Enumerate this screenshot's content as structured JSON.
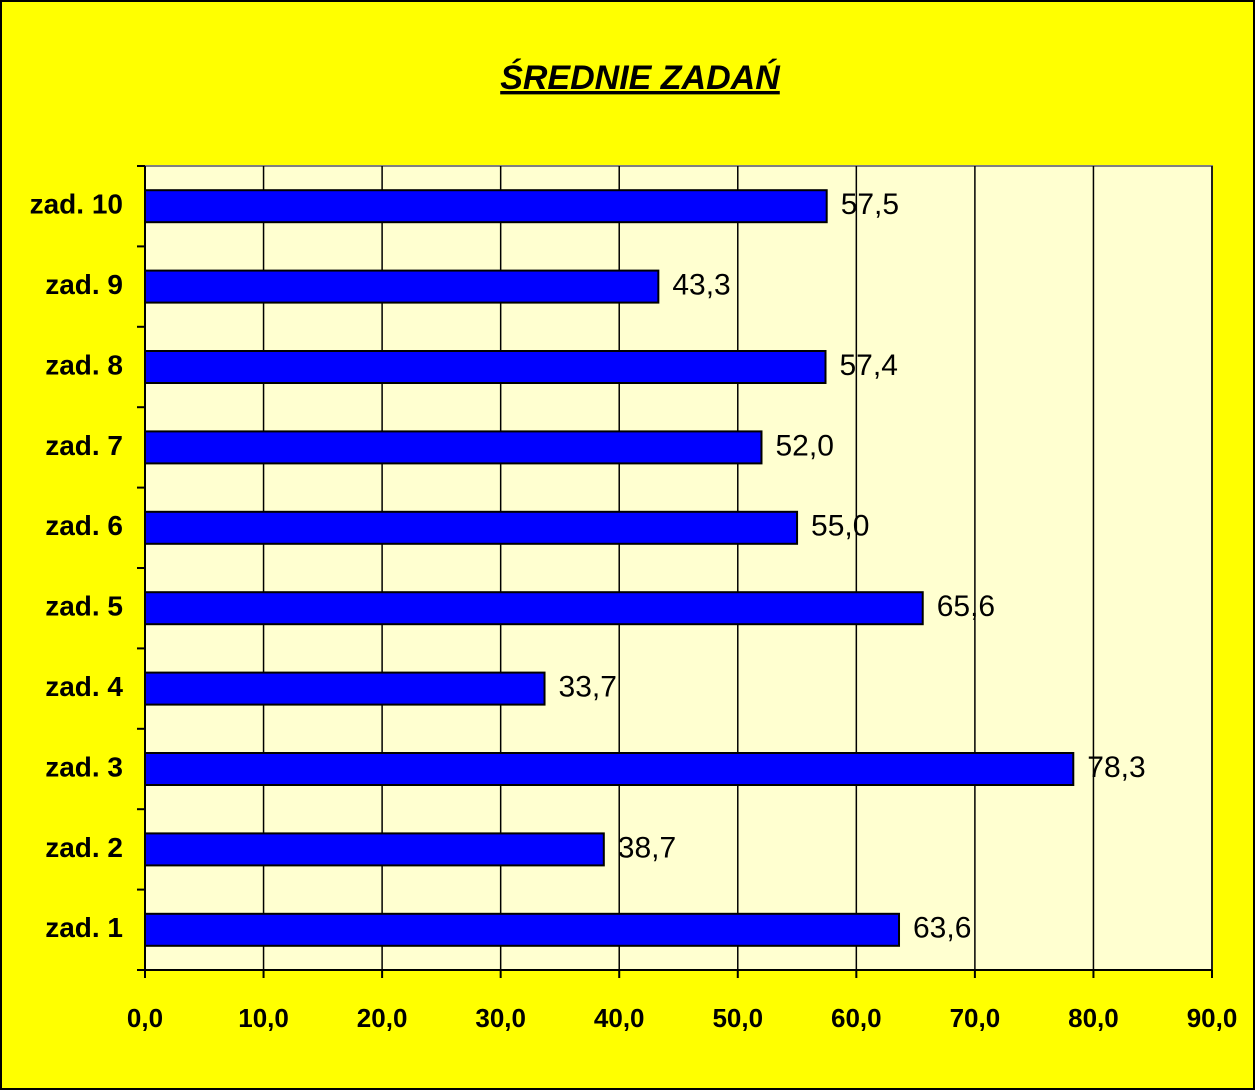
{
  "chart_data": {
    "type": "bar",
    "orientation": "horizontal",
    "title": "ŚREDNIE ZADAŃ",
    "categories": [
      "zad. 1",
      "zad. 2",
      "zad. 3",
      "zad. 4",
      "zad. 5",
      "zad. 6",
      "zad. 7",
      "zad. 8",
      "zad. 9",
      "zad. 10"
    ],
    "values": [
      63.6,
      38.7,
      78.3,
      33.7,
      65.6,
      55.0,
      52.0,
      57.4,
      43.3,
      57.5
    ],
    "value_labels": [
      "63,6",
      "38,7",
      "78,3",
      "33,7",
      "65,6",
      "55,0",
      "52,0",
      "57,4",
      "43,3",
      "57,5"
    ],
    "color": "#0000ff",
    "xlim": [
      0,
      90
    ],
    "xticks": [
      {
        "value": 0,
        "label": "0,0"
      },
      {
        "value": 10,
        "label": "10,0"
      },
      {
        "value": 20,
        "label": "20,0"
      },
      {
        "value": 30,
        "label": "30,0"
      },
      {
        "value": 40,
        "label": "40,0"
      },
      {
        "value": 50,
        "label": "50,0"
      },
      {
        "value": 60,
        "label": "60,0"
      },
      {
        "value": 70,
        "label": "70,0"
      },
      {
        "value": 80,
        "label": "80,0"
      },
      {
        "value": 90,
        "label": "90,0"
      }
    ],
    "grid": true
  }
}
